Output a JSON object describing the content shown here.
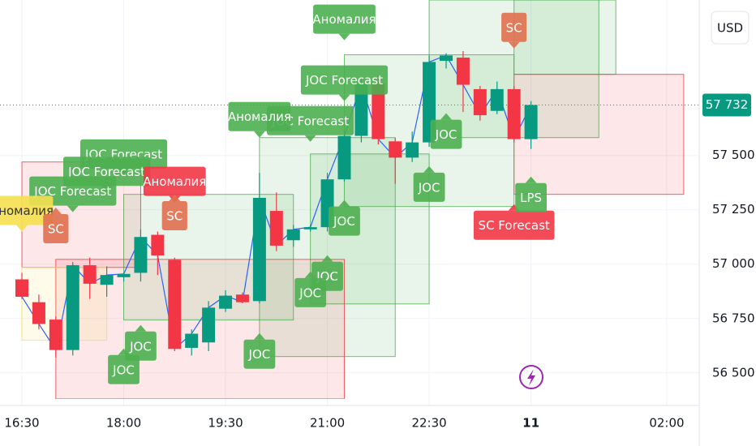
{
  "chart_data": {
    "type": "candlestick",
    "currency": "USD",
    "up_color": "#089981",
    "down_color": "#f23645",
    "line_color": "#2962ff",
    "grid": true,
    "categories": [
      "16:30",
      null,
      null,
      null,
      null,
      null,
      "18:00",
      null,
      null,
      null,
      null,
      null,
      "19:30",
      null,
      null,
      null,
      null,
      null,
      "21:00",
      null,
      null,
      null,
      null,
      null,
      "22:30",
      null,
      null,
      null,
      null,
      null,
      "11",
      null,
      null,
      null,
      null,
      null,
      null,
      null,
      "02:00"
    ],
    "candles": [
      {
        "o": 56930,
        "h": 56960,
        "l": 56840,
        "c": 56850
      },
      {
        "o": 56825,
        "h": 56860,
        "l": 56700,
        "c": 56725
      },
      {
        "o": 56745,
        "h": 56760,
        "l": 56570,
        "c": 56605
      },
      {
        "o": 56605,
        "h": 57010,
        "l": 56580,
        "c": 56995
      },
      {
        "o": 56995,
        "h": 57030,
        "l": 56840,
        "c": 56910
      },
      {
        "o": 56905,
        "h": 56990,
        "l": 56850,
        "c": 56950
      },
      {
        "o": 56940,
        "h": 56960,
        "l": 56920,
        "c": 56955
      },
      {
        "o": 56960,
        "h": 57160,
        "l": 56920,
        "c": 57125
      },
      {
        "o": 57135,
        "h": 57150,
        "l": 56950,
        "c": 57040
      },
      {
        "o": 57020,
        "h": 57030,
        "l": 56600,
        "c": 56610
      },
      {
        "o": 56615,
        "h": 56700,
        "l": 56580,
        "c": 56680
      },
      {
        "o": 56640,
        "h": 56830,
        "l": 56600,
        "c": 56800
      },
      {
        "o": 56795,
        "h": 56880,
        "l": 56780,
        "c": 56855
      },
      {
        "o": 56860,
        "h": 56870,
        "l": 56820,
        "c": 56825
      },
      {
        "o": 56830,
        "h": 57420,
        "l": 56820,
        "c": 57305
      },
      {
        "o": 57245,
        "h": 57330,
        "l": 57060,
        "c": 57085
      },
      {
        "o": 57110,
        "h": 57180,
        "l": 57080,
        "c": 57160
      },
      {
        "o": 57160,
        "h": 57180,
        "l": 57150,
        "c": 57170
      },
      {
        "o": 57170,
        "h": 57420,
        "l": 57150,
        "c": 57390
      },
      {
        "o": 57390,
        "h": 57620,
        "l": 57380,
        "c": 57590
      },
      {
        "o": 57590,
        "h": 57860,
        "l": 57560,
        "c": 57830
      },
      {
        "o": 57830,
        "h": 57870,
        "l": 57550,
        "c": 57575
      },
      {
        "o": 57565,
        "h": 57580,
        "l": 57370,
        "c": 57490
      },
      {
        "o": 57490,
        "h": 57610,
        "l": 57470,
        "c": 57560
      },
      {
        "o": 57560,
        "h": 57960,
        "l": 57540,
        "c": 57930
      },
      {
        "o": 57935,
        "h": 57970,
        "l": 57900,
        "c": 57960
      },
      {
        "o": 57950,
        "h": 57980,
        "l": 57700,
        "c": 57825
      },
      {
        "o": 57805,
        "h": 57820,
        "l": 57660,
        "c": 57685
      },
      {
        "o": 57705,
        "h": 57840,
        "l": 57690,
        "c": 57805
      },
      {
        "o": 57805,
        "h": 57820,
        "l": 57560,
        "c": 57575
      },
      {
        "o": 57575,
        "h": 57750,
        "l": 57530,
        "c": 57732
      },
      null,
      null,
      null,
      null,
      null,
      null,
      null,
      null
    ],
    "last_price": {
      "value": 57732,
      "label": "57 732"
    },
    "ylim": [
      56350,
      58215
    ],
    "yticks": [
      {
        "value": 56500,
        "label": "56 500"
      },
      {
        "value": 56750,
        "label": "56 750"
      },
      {
        "value": 57000,
        "label": "57 000"
      },
      {
        "value": 57250,
        "label": "57 250"
      },
      {
        "value": 57500,
        "label": "57 500"
      }
    ],
    "zones": [
      {
        "from": 24,
        "to": 34,
        "low": 57582,
        "high": 58215,
        "color": "#4caf50"
      },
      {
        "from": 29,
        "to": 35,
        "low": 57873,
        "high": 58215,
        "color": "#4caf50"
      },
      {
        "from": 29,
        "to": 39,
        "low": 57321,
        "high": 57873,
        "color": "#f23645"
      },
      {
        "from": 19,
        "to": 29,
        "low": 57265,
        "high": 57963,
        "color": "#4caf50"
      },
      {
        "from": 14,
        "to": 22,
        "low": 56575,
        "high": 57582,
        "color": "#4caf50"
      },
      {
        "from": 17,
        "to": 24,
        "low": 56817,
        "high": 57507,
        "color": "#4caf50"
      },
      {
        "from": 2,
        "to": 19,
        "low": 56380,
        "high": 57022,
        "color": "#f23645"
      },
      {
        "from": 6,
        "to": 16,
        "low": 56743,
        "high": 57321,
        "color": "#4caf50"
      },
      {
        "from": 0,
        "to": 7,
        "low": 56985,
        "high": 57470,
        "color": "#f23645"
      },
      {
        "from": 0,
        "to": 5,
        "low": 56650,
        "high": 56985,
        "color": "#f5e050"
      }
    ],
    "annotations": [
      {
        "text": "Аномалия",
        "index": 19,
        "price": 58030,
        "dir": "down",
        "color": "#4caf50"
      },
      {
        "text": "JOC Forecast",
        "index": 19,
        "price": 57750,
        "dir": "down",
        "color": "#4caf50"
      },
      {
        "text": "JOC Forecast",
        "index": 17,
        "price": 57563,
        "dir": "down",
        "color": "#4caf50"
      },
      {
        "text": "Аномалия",
        "index": 14,
        "price": 57582,
        "dir": "down",
        "color": "#4caf50"
      },
      {
        "text": "JOC Forecast",
        "index": 6,
        "price": 57410,
        "dir": "down",
        "color": "#4caf50"
      },
      {
        "text": "JOC Forecast",
        "index": 5,
        "price": 57330,
        "dir": "down",
        "color": "#4caf50"
      },
      {
        "text": "Аномалия",
        "index": 9,
        "price": 57284,
        "dir": "down",
        "color": "#f23645"
      },
      {
        "text": "JOC Forecast",
        "index": 3,
        "price": 57239,
        "dir": "down",
        "color": "#4caf50"
      },
      {
        "text": "Аномалия",
        "index": 0,
        "price": 57150,
        "dir": "down",
        "color": "#f5e050"
      },
      {
        "text": "SC",
        "index": 29,
        "price": 57992,
        "dir": "down",
        "color": "#e0704f"
      },
      {
        "text": "SC",
        "index": 9,
        "price": 57320,
        "dir": "up",
        "color": "#e0704f"
      },
      {
        "text": "SC",
        "index": 2,
        "price": 57260,
        "dir": "up",
        "color": "#e0704f"
      },
      {
        "text": "SC Forecast",
        "index": 29,
        "price": 57276,
        "dir": "up",
        "color": "#f23645"
      },
      {
        "text": "LPS",
        "index": 30,
        "price": 57403,
        "dir": "up",
        "color": "#4caf50"
      },
      {
        "text": "JOC",
        "index": 25,
        "price": 57694,
        "dir": "up",
        "color": "#4caf50"
      },
      {
        "text": "JOC",
        "index": 24,
        "price": 57451,
        "dir": "up",
        "color": "#4caf50"
      },
      {
        "text": "JOC",
        "index": 19,
        "price": 57295,
        "dir": "up",
        "color": "#4caf50"
      },
      {
        "text": "JOC",
        "index": 18,
        "price": 57041,
        "dir": "up",
        "color": "#4caf50"
      },
      {
        "text": "JOC",
        "index": 17,
        "price": 56966,
        "dir": "up",
        "color": "#4caf50"
      },
      {
        "text": "JOC",
        "index": 14,
        "price": 56683,
        "dir": "up",
        "color": "#4caf50"
      },
      {
        "text": "JOC",
        "index": 7,
        "price": 56720,
        "dir": "up",
        "color": "#4caf50"
      },
      {
        "text": "JOC",
        "index": 6,
        "price": 56612,
        "dir": "up",
        "color": "#4caf50"
      }
    ]
  }
}
